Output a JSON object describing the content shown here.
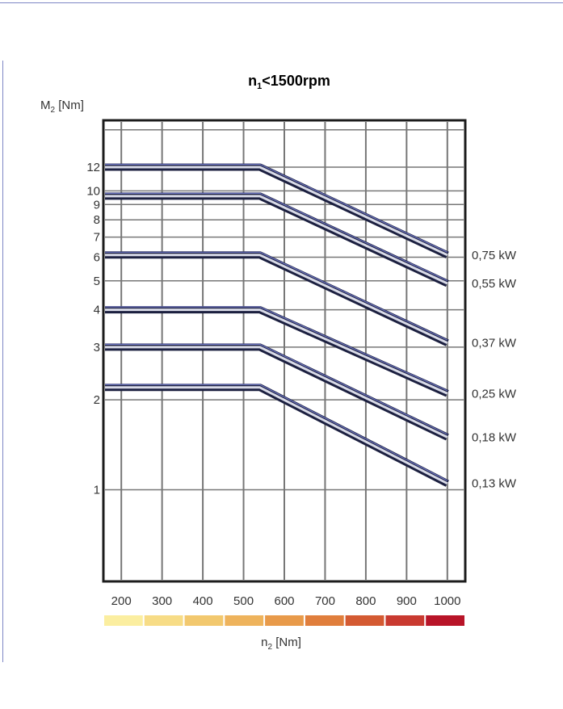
{
  "chart_data": {
    "type": "line",
    "title": {
      "main": "n",
      "sub": "1",
      "rest": "<1500rpm"
    },
    "ylabel": {
      "main": "M",
      "sub": "2",
      "rest": " [Nm]"
    },
    "xlabel": {
      "main": "n",
      "sub": "2",
      "rest": " [Nm]"
    },
    "x_scale": "linear",
    "y_scale": "log",
    "xlim": [
      160,
      1040
    ],
    "ylim": [
      0.5,
      17
    ],
    "x_ticks": [
      200,
      300,
      400,
      500,
      600,
      700,
      800,
      900,
      1000
    ],
    "y_ticks": [
      1,
      2,
      3,
      4,
      5,
      6,
      7,
      8,
      9,
      10,
      12
    ],
    "grid": true,
    "series": [
      {
        "name": "0,75 kW",
        "x": [
          160,
          540,
          1000
        ],
        "y": [
          12,
          12,
          6.1
        ]
      },
      {
        "name": "0,55 kW",
        "x": [
          160,
          540,
          1000
        ],
        "y": [
          9.6,
          9.6,
          4.9
        ]
      },
      {
        "name": "0,37 kW",
        "x": [
          160,
          540,
          1000
        ],
        "y": [
          6.1,
          6.1,
          3.1
        ]
      },
      {
        "name": "0,25 kW",
        "x": [
          160,
          540,
          1000
        ],
        "y": [
          4.0,
          4.0,
          2.1
        ]
      },
      {
        "name": "0,18 kW",
        "x": [
          160,
          540,
          1000
        ],
        "y": [
          3.0,
          3.0,
          1.5
        ]
      },
      {
        "name": "0,13 kW",
        "x": [
          160,
          540,
          1000
        ],
        "y": [
          2.2,
          2.2,
          1.05
        ]
      }
    ],
    "speed_scale_colors": [
      "#fbeea0",
      "#f7dc86",
      "#f2c86e",
      "#eeb35c",
      "#e89a4a",
      "#e07e3c",
      "#d45a32",
      "#c93a30",
      "#b81428"
    ],
    "line_color": "#1c2040",
    "highlight_color": "#6f77c4"
  }
}
